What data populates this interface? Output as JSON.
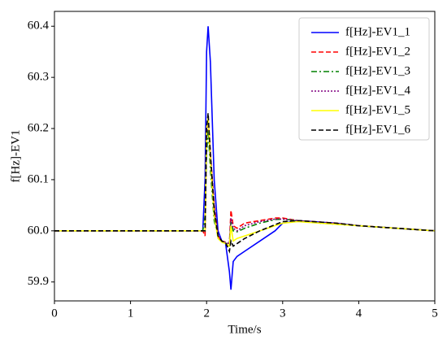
{
  "chart_data": {
    "type": "line",
    "xlabel": "Time/s",
    "ylabel": "f[Hz]-EV1",
    "x": [
      0,
      1.95,
      1.98,
      2.0,
      2.02,
      2.05,
      2.1,
      2.15,
      2.2,
      2.25,
      2.3,
      2.32,
      2.35,
      2.4,
      2.5,
      2.7,
      2.9,
      3.0,
      3.2,
      3.5,
      3.7,
      4.0,
      4.5,
      5.0
    ],
    "series": [
      {
        "name": "f[Hz]-EV1_1",
        "color": "#0000ff",
        "linestyle": "solid",
        "values": [
          60,
          60,
          60.1,
          60.35,
          60.4,
          60.33,
          60.1,
          60.0,
          59.98,
          59.975,
          59.92,
          59.885,
          59.94,
          59.95,
          59.96,
          59.98,
          60.0,
          60.015,
          60.02,
          60.017,
          60.015,
          60.01,
          60.005,
          60.0
        ]
      },
      {
        "name": "f[Hz]-EV1_2",
        "color": "#ff0000",
        "linestyle": "dashed",
        "values": [
          60,
          60,
          59.99,
          60.2,
          60.22,
          60.15,
          60.05,
          59.99,
          59.98,
          59.978,
          59.975,
          60.04,
          60.01,
          60.005,
          60.015,
          60.02,
          60.025,
          60.025,
          60.02,
          60.017,
          60.015,
          60.01,
          60.005,
          60.0
        ]
      },
      {
        "name": "f[Hz]-EV1_3",
        "color": "#008000",
        "linestyle": "dashdot",
        "values": [
          60,
          60,
          60.03,
          60.15,
          60.2,
          60.12,
          60.02,
          59.99,
          59.98,
          59.975,
          59.975,
          60.02,
          60.0,
          59.998,
          60.005,
          60.015,
          60.022,
          60.023,
          60.02,
          60.015,
          60.013,
          60.01,
          60.005,
          60.0
        ]
      },
      {
        "name": "f[Hz]-EV1_4",
        "color": "#800080",
        "linestyle": "dotted",
        "values": [
          60,
          60,
          60.0,
          60.18,
          60.22,
          60.15,
          60.05,
          59.99,
          59.98,
          59.977,
          59.975,
          60.025,
          60.005,
          60.0,
          60.01,
          60.018,
          60.023,
          60.023,
          60.02,
          60.016,
          60.014,
          60.01,
          60.005,
          60.0
        ]
      },
      {
        "name": "f[Hz]-EV1_5",
        "color": "#ffff00",
        "linestyle": "solid",
        "values": [
          60,
          60,
          60.0,
          60.2,
          60.22,
          60.14,
          60.03,
          59.985,
          59.978,
          59.975,
          59.97,
          60.01,
          59.98,
          59.985,
          59.99,
          60.0,
          60.01,
          60.015,
          60.018,
          60.015,
          60.013,
          60.01,
          60.005,
          60.0
        ]
      },
      {
        "name": "f[Hz]-EV1_6",
        "color": "#000000",
        "linestyle": "dashed",
        "values": [
          60,
          60,
          60.0,
          60.2,
          60.23,
          60.15,
          60.04,
          59.99,
          59.98,
          59.977,
          59.96,
          59.98,
          59.97,
          59.975,
          59.985,
          60.0,
          60.012,
          60.018,
          60.02,
          60.017,
          60.015,
          60.01,
          60.005,
          60.0
        ]
      }
    ],
    "xlim": [
      0,
      5
    ],
    "xticks": [
      0,
      1,
      2,
      3,
      4,
      5
    ],
    "ylim": [
      59.863,
      60.429
    ],
    "yticks": [
      59.9,
      {
        "value": 60,
        "label": "60.0"
      },
      60.1,
      60.2,
      60.3,
      60.4
    ],
    "legend": "upper right"
  }
}
